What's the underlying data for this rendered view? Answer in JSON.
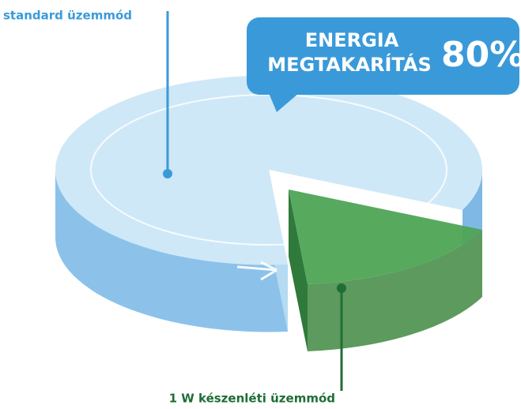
{
  "labels": {
    "standard": "standard üzemmód",
    "standby": "1 W készenléti üzemmód"
  },
  "badge": {
    "lines": [
      "ENERGIA",
      "MEGTAKARÍTÁS"
    ],
    "value": "80%"
  }
}
